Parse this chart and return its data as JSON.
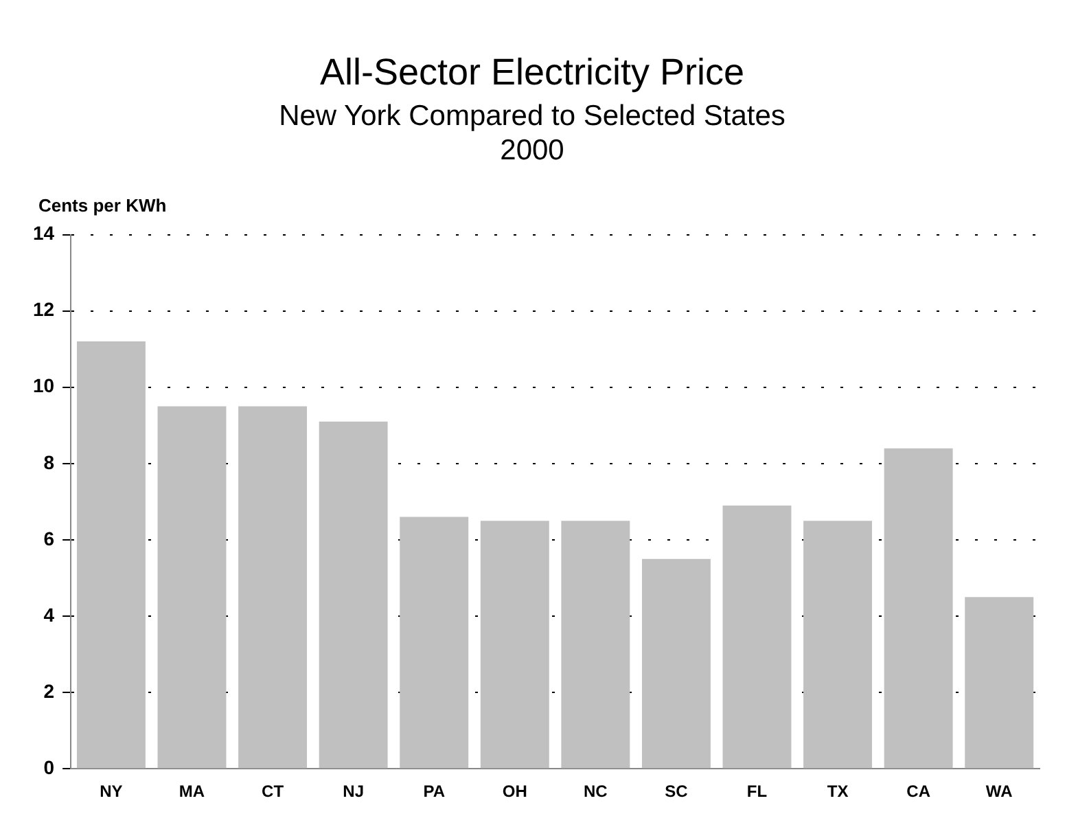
{
  "chart_data": {
    "type": "bar",
    "title": "All-Sector Electricity Price",
    "subtitle": "New York Compared to Selected States\n2000",
    "ylabel": "Cents per KWh",
    "categories": [
      "NY",
      "MA",
      "CT",
      "NJ",
      "PA",
      "OH",
      "NC",
      "SC",
      "FL",
      "TX",
      "CA",
      "WA"
    ],
    "values": [
      11.2,
      9.5,
      9.5,
      9.1,
      6.6,
      6.5,
      6.5,
      5.5,
      6.9,
      6.5,
      8.4,
      4.5
    ],
    "color": "#c0c0c0",
    "ylim": [
      0,
      14
    ],
    "yticks": [
      0,
      2,
      4,
      6,
      8,
      10,
      12,
      14
    ],
    "grid": "y"
  }
}
